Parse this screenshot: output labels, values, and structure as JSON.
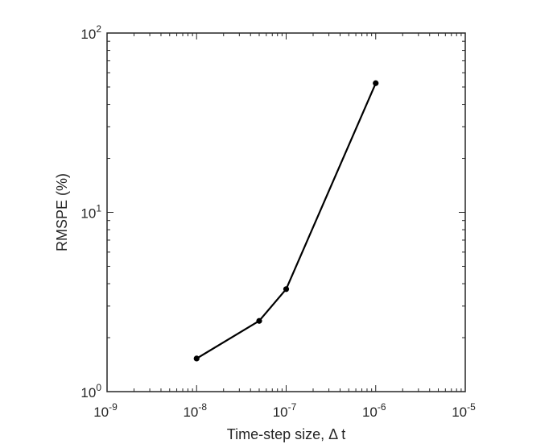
{
  "chart_data": {
    "type": "line",
    "xlabel": "Time-step size, Δ t",
    "ylabel": "RMSPE (%)",
    "xscale": "log",
    "yscale": "log",
    "xlim": [
      1e-09,
      1e-05
    ],
    "ylim": [
      1,
      100
    ],
    "grid": false,
    "box": true,
    "x_ticks": [
      {
        "value": 1e-09,
        "base": "10",
        "exp": "-9"
      },
      {
        "value": 1e-08,
        "base": "10",
        "exp": "-8"
      },
      {
        "value": 1e-07,
        "base": "10",
        "exp": "-7"
      },
      {
        "value": 1e-06,
        "base": "10",
        "exp": "-6"
      },
      {
        "value": 1e-05,
        "base": "10",
        "exp": "-5"
      }
    ],
    "y_ticks": [
      {
        "value": 1,
        "base": "10",
        "exp": "0"
      },
      {
        "value": 10,
        "base": "10",
        "exp": "1"
      },
      {
        "value": 100,
        "base": "10",
        "exp": "2"
      }
    ],
    "series": [
      {
        "color": "#000000",
        "marker": "circle",
        "x": [
          1e-08,
          5e-08,
          1e-07,
          1e-06
        ],
        "y": [
          1.53,
          2.48,
          3.73,
          52.5
        ]
      }
    ]
  }
}
